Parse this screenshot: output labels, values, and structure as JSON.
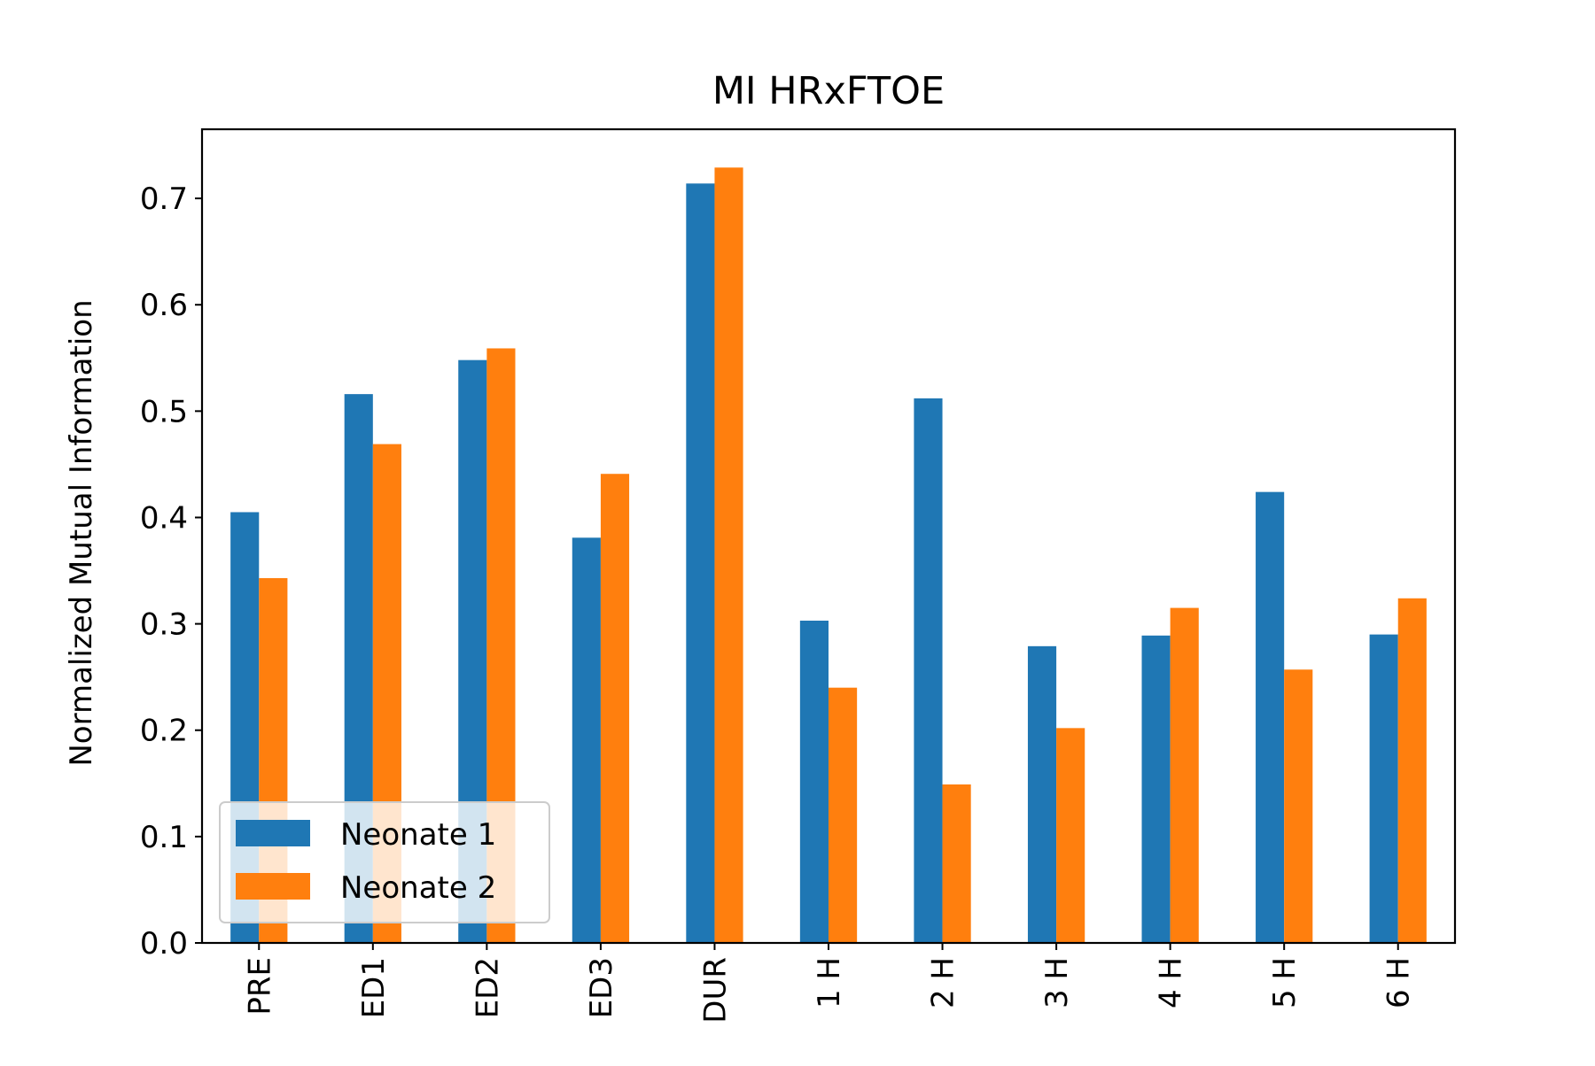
{
  "chart_data": {
    "type": "bar",
    "title": "MI HRxFTOE",
    "xlabel": "",
    "ylabel": "Normalized Mutual Information",
    "categories": [
      "PRE",
      "ED1",
      "ED2",
      "ED3",
      "DUR",
      "1 H",
      "2 H",
      "3 H",
      "4 H",
      "5 H",
      "6 H"
    ],
    "series": [
      {
        "name": "Neonate 1",
        "color": "#1f77b4",
        "values": [
          0.405,
          0.516,
          0.548,
          0.381,
          0.714,
          0.303,
          0.512,
          0.279,
          0.289,
          0.424,
          0.29
        ]
      },
      {
        "name": "Neonate 2",
        "color": "#ff7f0e",
        "values": [
          0.343,
          0.469,
          0.559,
          0.441,
          0.729,
          0.24,
          0.149,
          0.202,
          0.315,
          0.257,
          0.324
        ]
      }
    ],
    "ylim": [
      0.0,
      0.765
    ],
    "yticks": [
      "0.0",
      "0.1",
      "0.2",
      "0.3",
      "0.4",
      "0.5",
      "0.6",
      "0.7"
    ],
    "xtick_rotation": "vertical",
    "grid": false,
    "legend": "lower-left"
  }
}
